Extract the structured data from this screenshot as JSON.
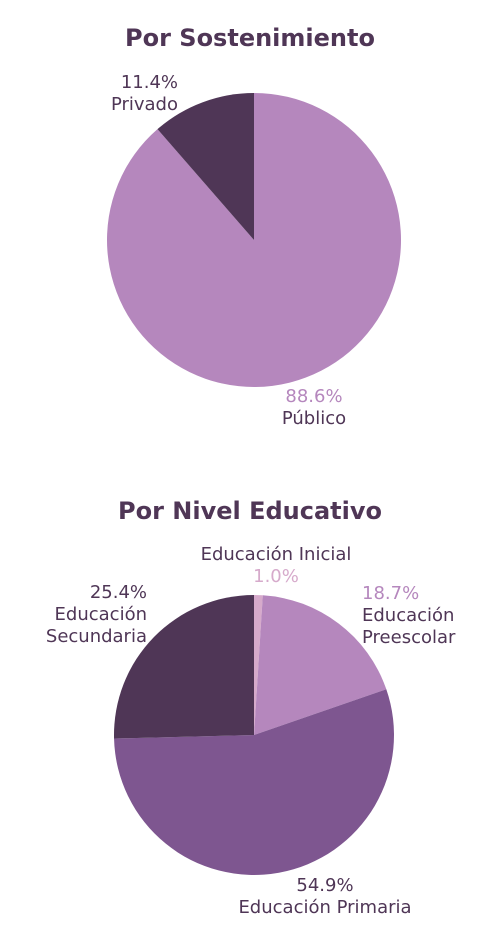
{
  "chart_data": [
    {
      "type": "pie",
      "title": "Por Sostenimiento",
      "slices": [
        {
          "label": "Público",
          "value": 88.6,
          "display": "88.6%",
          "color": "#b587bd",
          "pct_color": "#b587bd"
        },
        {
          "label": "Privado",
          "value": 11.4,
          "display": "11.4%",
          "color": "#4f3656",
          "pct_color": "#4f3656"
        }
      ]
    },
    {
      "type": "pie",
      "title": "Por Nivel Educativo",
      "slices": [
        {
          "label": "Educación Inicial",
          "value": 1.0,
          "display": "1.0%",
          "color": "#d6aacb",
          "pct_color": "#d6aacb"
        },
        {
          "label": "Educación Preescolar",
          "value": 18.7,
          "display": "18.7%",
          "color": "#b587bd",
          "pct_color": "#b587bd"
        },
        {
          "label": "Educación Primaria",
          "value": 54.9,
          "display": "54.9%",
          "color": "#7e5690",
          "pct_color": "#4f3656"
        },
        {
          "label": "Educación Secundaria",
          "value": 25.4,
          "display": "25.4%",
          "color": "#4f3656",
          "pct_color": "#4f3656"
        }
      ]
    }
  ]
}
